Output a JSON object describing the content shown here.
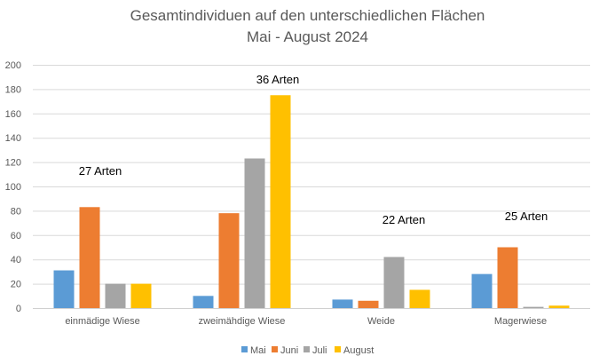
{
  "chart_data": {
    "type": "bar",
    "title": [
      "Gesamtindividuen auf den unterschiedlichen Flächen",
      "Mai - August 2024"
    ],
    "xlabel": "",
    "ylabel": "",
    "ylim": [
      0,
      200
    ],
    "yticks": [
      0,
      20,
      40,
      60,
      80,
      100,
      120,
      140,
      160,
      180,
      200
    ],
    "grid": true,
    "legend": "bottom",
    "categories": [
      "einmädige Wiese",
      "zweimähdige Wiese",
      "Weide",
      "Magerwiese"
    ],
    "series": [
      {
        "name": "Mai",
        "color": "#5B9BD5",
        "values": [
          31,
          10,
          7,
          28
        ]
      },
      {
        "name": "Juni",
        "color": "#ED7D31",
        "values": [
          83,
          78,
          6,
          50
        ]
      },
      {
        "name": "Juli",
        "color": "#A5A5A5",
        "values": [
          20,
          123,
          42,
          1
        ]
      },
      {
        "name": "August",
        "color": "#FFC000",
        "values": [
          20,
          175,
          15,
          2
        ]
      }
    ],
    "annotations": [
      "27 Arten",
      "36 Arten",
      "22 Arten",
      "25 Arten"
    ]
  }
}
